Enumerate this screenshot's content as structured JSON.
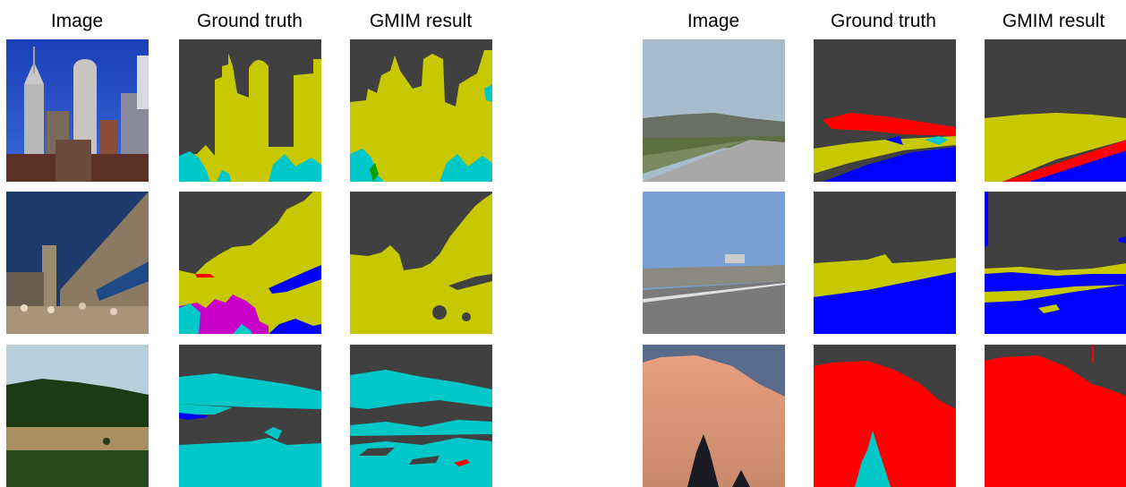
{
  "headers": {
    "left": {
      "image": "Image",
      "ground_truth": "Ground truth",
      "result": "GMIM result"
    },
    "right": {
      "image": "Image",
      "ground_truth": "Ground truth",
      "result": "GMIM result"
    }
  },
  "colors": {
    "background_class": "#404040",
    "yellow_class": "#c8c800",
    "cyan_class": "#00c8c8",
    "blue_class": "#0000ff",
    "red_class": "#ff0000",
    "magenta_class": "#c800c8",
    "green_class": "#00a000"
  }
}
